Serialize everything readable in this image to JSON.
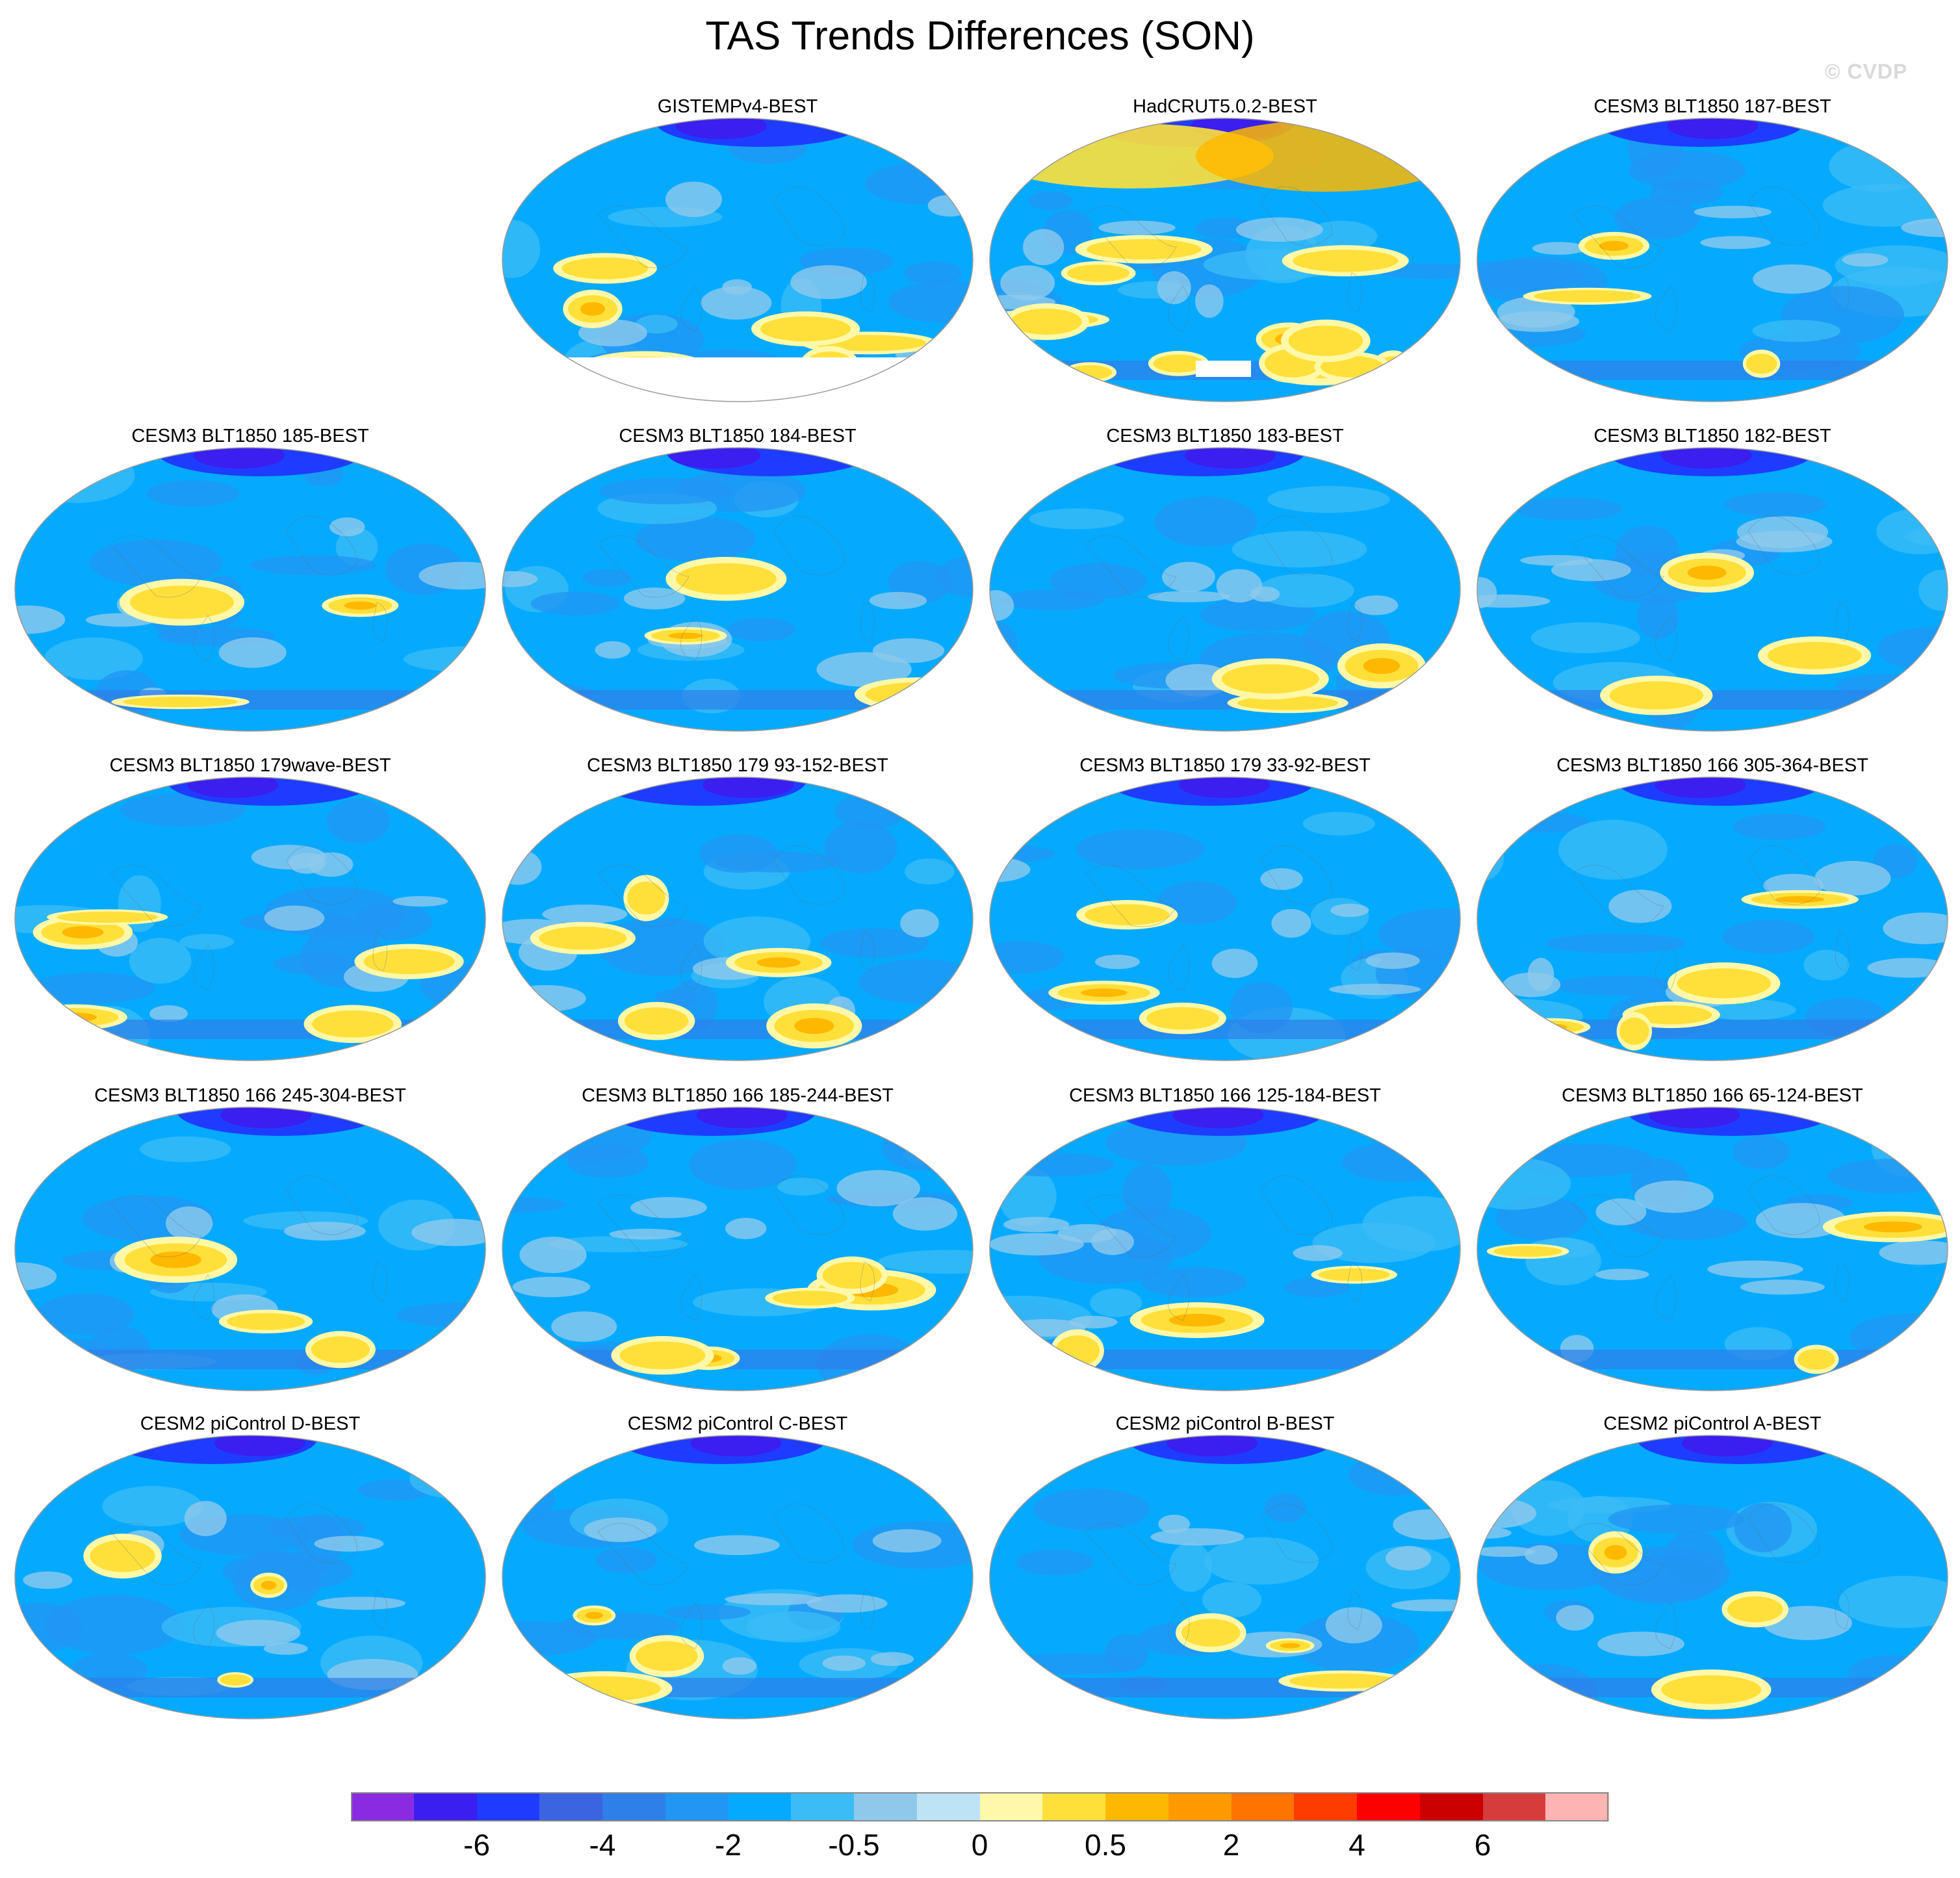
{
  "title": "TAS Trends Differences (SON)",
  "watermark": "© CVDP",
  "panels": [
    {
      "label": "GISTEMPv4-BEST",
      "warm": "high",
      "mask": "antarctic"
    },
    {
      "label": "HadCRUT5.0.2-BEST",
      "warm": "very-high",
      "mask": "antarctic-small"
    },
    {
      "label": "CESM3 BLT1850 187-BEST",
      "warm": "low",
      "mask": "none"
    },
    {
      "label": "CESM3 BLT1850 185-BEST",
      "warm": "low",
      "mask": "none"
    },
    {
      "label": "CESM3 BLT1850 184-BEST",
      "warm": "low",
      "mask": "none"
    },
    {
      "label": "CESM3 BLT1850 183-BEST",
      "warm": "low",
      "mask": "none"
    },
    {
      "label": "CESM3 BLT1850 182-BEST",
      "warm": "low",
      "mask": "none"
    },
    {
      "label": "CESM3 BLT1850 179wave-BEST",
      "warm": "medium",
      "mask": "none"
    },
    {
      "label": "CESM3 BLT1850 179 93-152-BEST",
      "warm": "medium",
      "mask": "none"
    },
    {
      "label": "CESM3 BLT1850 179 33-92-BEST",
      "warm": "low",
      "mask": "none"
    },
    {
      "label": "CESM3 BLT1850 166 305-364-BEST",
      "warm": "medium",
      "mask": "none"
    },
    {
      "label": "CESM3 BLT1850 166 245-304-BEST",
      "warm": "low",
      "mask": "none"
    },
    {
      "label": "CESM3 BLT1850 166 185-244-BEST",
      "warm": "medium",
      "mask": "none"
    },
    {
      "label": "CESM3 BLT1850 166 125-184-BEST",
      "warm": "low",
      "mask": "none"
    },
    {
      "label": "CESM3 BLT1850 166 65-124-BEST",
      "warm": "low",
      "mask": "none"
    },
    {
      "label": "CESM2 piControl D-BEST",
      "warm": "low",
      "mask": "none"
    },
    {
      "label": "CESM2 piControl C-BEST",
      "warm": "low",
      "mask": "none"
    },
    {
      "label": "CESM2 piControl B-BEST",
      "warm": "low",
      "mask": "none"
    },
    {
      "label": "CESM2 piControl A-BEST",
      "warm": "low",
      "mask": "none"
    }
  ],
  "colorbar": {
    "colors": [
      "#8a2be2",
      "#3b1ef0",
      "#1e3cff",
      "#3a64e0",
      "#2f7fe8",
      "#2196f3",
      "#05aaff",
      "#3cbcf6",
      "#8ec9ec",
      "#bde3f5",
      "#fff8a8",
      "#ffe03a",
      "#ffb800",
      "#ff9900",
      "#ff7300",
      "#ff3c00",
      "#ff0000",
      "#cc0000",
      "#d73c3c",
      "#ffb4b4"
    ],
    "labels": [
      "-6",
      "-4",
      "-2",
      "-0.5",
      "0",
      "0.5",
      "2",
      "4",
      "6"
    ]
  }
}
